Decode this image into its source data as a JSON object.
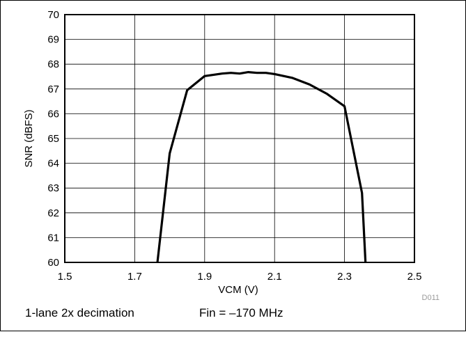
{
  "chart_data": {
    "type": "line",
    "title": "",
    "xlabel": "VCM (V)",
    "ylabel": "SNR (dBFS)",
    "xlim": [
      1.5,
      2.5
    ],
    "ylim": [
      60,
      70
    ],
    "xticks": [
      "1.5",
      "1.7",
      "1.9",
      "2.1",
      "2.3",
      "2.5"
    ],
    "yticks": [
      "60",
      "61",
      "62",
      "63",
      "64",
      "65",
      "66",
      "67",
      "68",
      "69",
      "70"
    ],
    "grid": true,
    "series": [
      {
        "color": "#000000",
        "x": [
          1.765,
          1.8,
          1.85,
          1.9,
          1.95,
          1.975,
          2.0,
          2.025,
          2.05,
          2.075,
          2.1,
          2.15,
          2.2,
          2.25,
          2.3,
          2.35,
          2.36
        ],
        "y": [
          60.0,
          64.4,
          66.95,
          67.52,
          67.62,
          67.65,
          67.62,
          67.68,
          67.65,
          67.65,
          67.6,
          67.45,
          67.18,
          66.8,
          66.3,
          62.8,
          60.0
        ]
      }
    ],
    "code": "D011"
  },
  "footnote": {
    "mode": "1-lane 2x decimation",
    "fin": "Fin = –170 MHz"
  }
}
